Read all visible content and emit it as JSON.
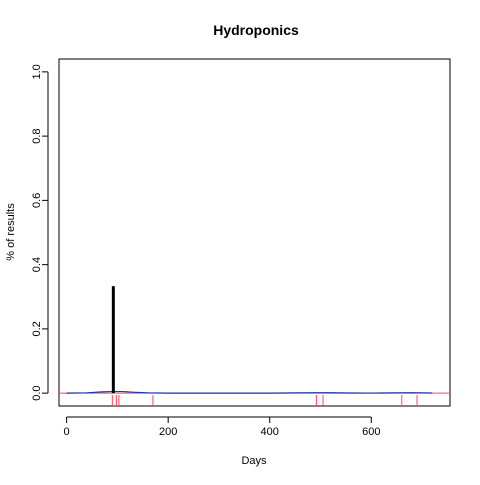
{
  "chart_data": {
    "type": "line",
    "title": "Hydroponics",
    "xlabel": "Days",
    "ylabel": "% of results",
    "xlim": [
      -15,
      755
    ],
    "ylim": [
      -0.04,
      1.04
    ],
    "x_ticks": [
      0,
      200,
      400,
      600
    ],
    "x_tick_labels": [
      "0",
      "200",
      "400",
      "600"
    ],
    "y_ticks": [
      0.0,
      0.2,
      0.4,
      0.6,
      0.8,
      1.0
    ],
    "y_tick_labels": [
      "0.0",
      "0.2",
      "0.4",
      "0.6",
      "0.8",
      "1.0"
    ],
    "grid": false,
    "series": [
      {
        "style": "density-curve",
        "color": "#2233aa",
        "x": [
          0,
          40,
          70,
          90,
          110,
          130,
          160,
          200,
          300,
          400,
          450,
          490,
          520,
          560,
          600,
          640,
          680,
          720
        ],
        "y": [
          0.0,
          0.001,
          0.004,
          0.005,
          0.005,
          0.003,
          0.001,
          0.0,
          0.0,
          0.0,
          0.0008,
          0.0015,
          0.0012,
          0.0004,
          0.0002,
          0.0009,
          0.0014,
          0.0004
        ]
      }
    ],
    "spike": {
      "x": 92,
      "y": 0.333,
      "color": "#000000"
    },
    "hline": {
      "y": 0.0,
      "color": "#ff4466"
    },
    "rug": {
      "color": "#ff4466",
      "x": [
        90,
        98,
        103,
        170,
        492,
        505,
        660,
        690
      ]
    }
  }
}
